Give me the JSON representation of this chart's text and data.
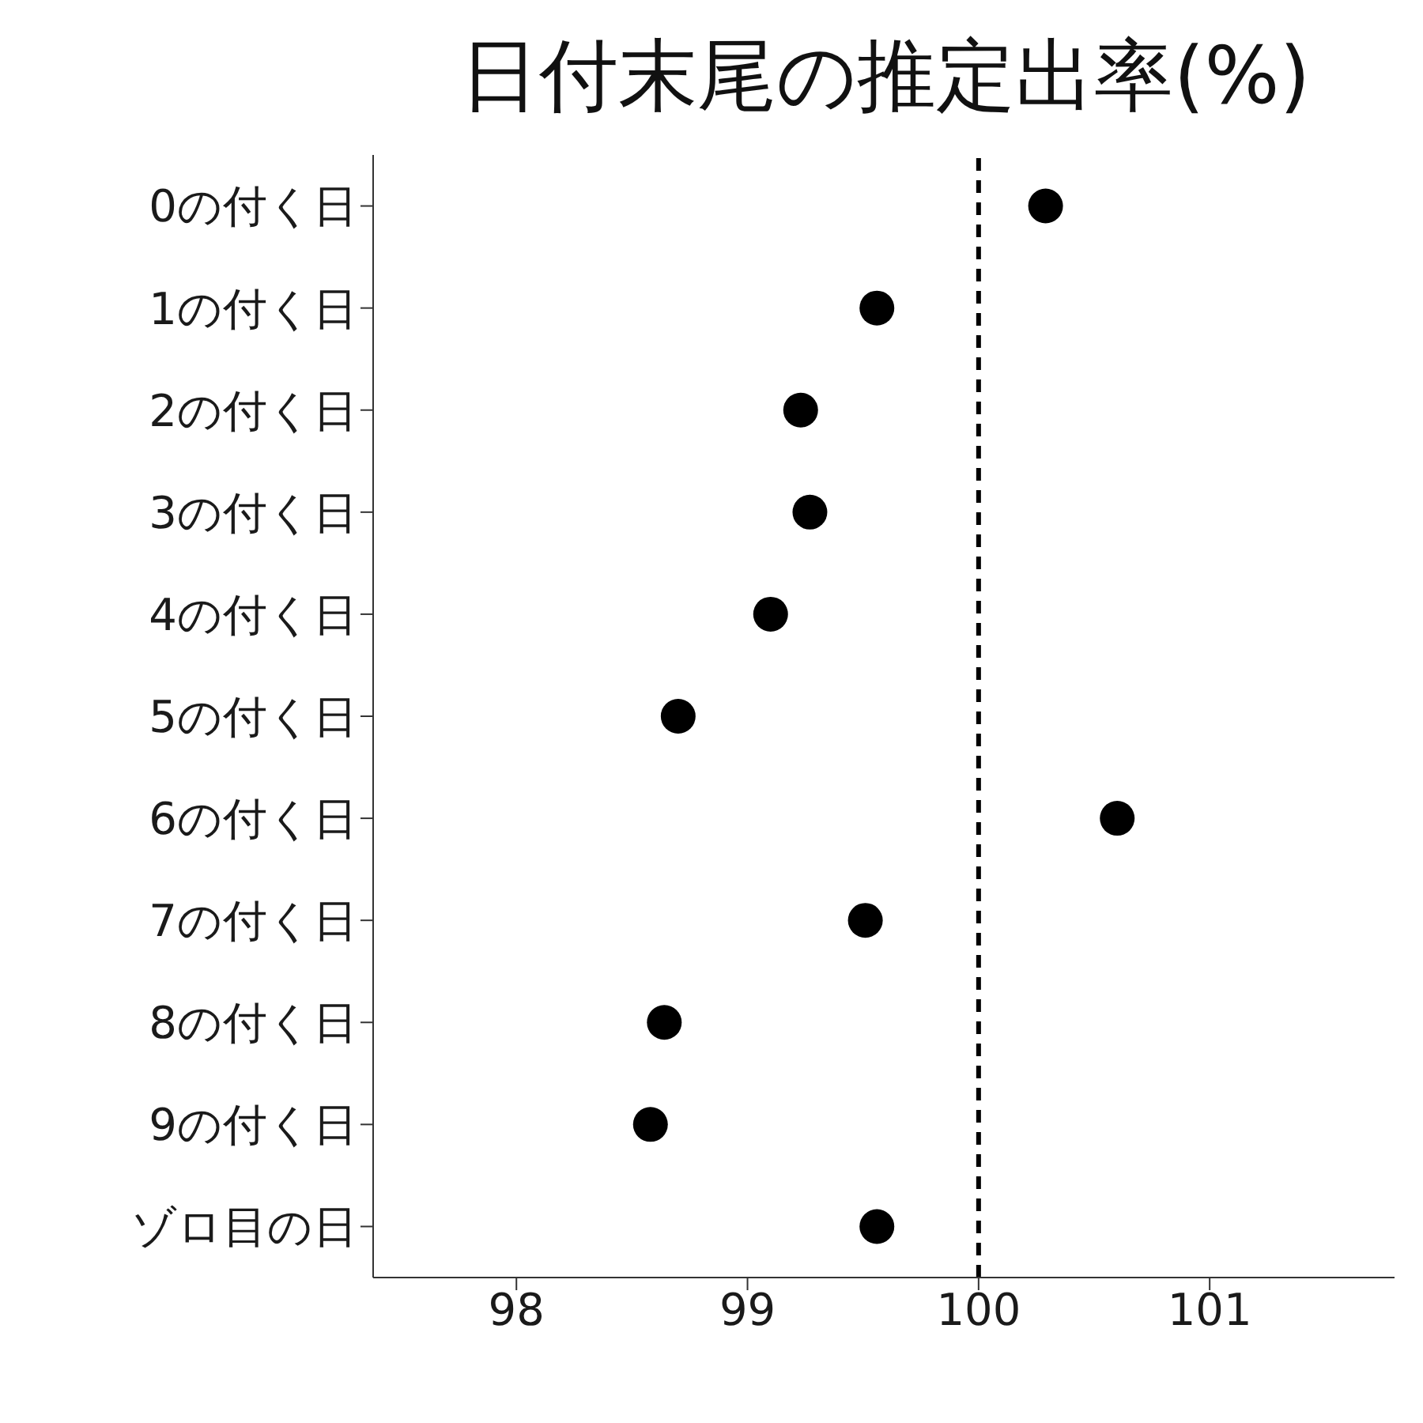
{
  "chart_data": {
    "type": "scatter",
    "orientation": "horizontal",
    "title": "日付末尾の推定出率(%)",
    "categories": [
      "0の付く日",
      "1の付く日",
      "2の付く日",
      "3の付く日",
      "4の付く日",
      "5の付く日",
      "6の付く日",
      "7の付く日",
      "8の付く日",
      "9の付く日",
      "ゾロ目の日"
    ],
    "values": [
      100.29,
      99.56,
      99.23,
      99.27,
      99.1,
      98.7,
      100.6,
      99.51,
      98.64,
      98.58,
      99.56
    ],
    "color": "#000000",
    "marker": "circle",
    "xlim": [
      97.38,
      101.8
    ],
    "xticks": [
      98,
      99,
      100,
      101
    ],
    "ref_lines": [
      {
        "axis": "x",
        "value": 100,
        "color": "#000000",
        "line_style": "dashed"
      }
    ]
  }
}
